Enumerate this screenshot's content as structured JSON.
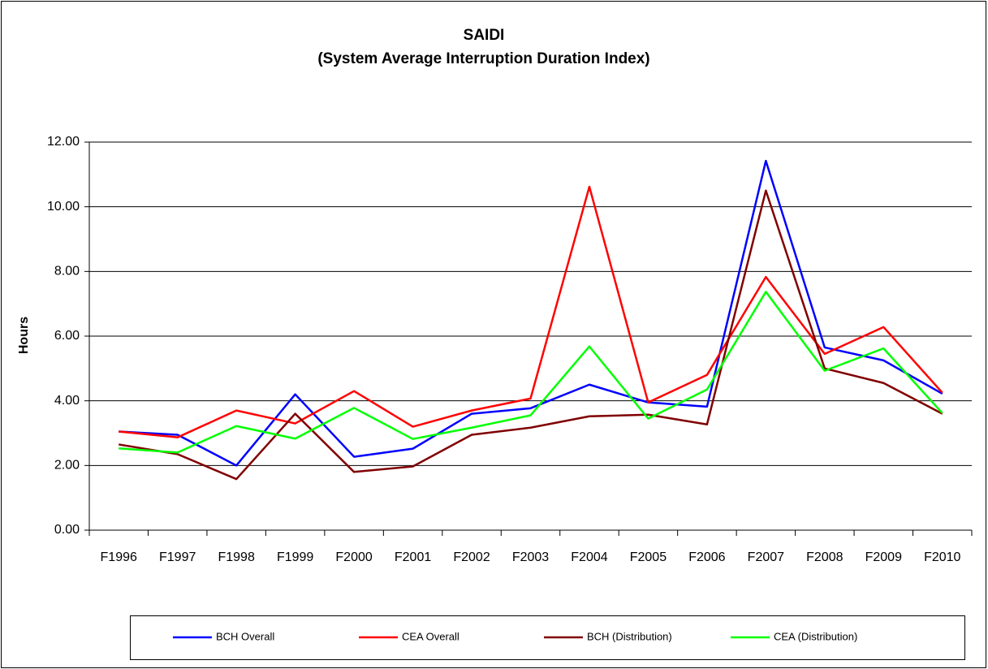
{
  "chart_data": {
    "type": "line",
    "title": "SAIDI",
    "subtitle": "(System Average Interruption Duration Index)",
    "y_label": "Hours",
    "categories": [
      "F1996",
      "F1997",
      "F1998",
      "F1999",
      "F2000",
      "F2001",
      "F2002",
      "F2003",
      "F2004",
      "F2005",
      "F2006",
      "F2007",
      "F2008",
      "F2009",
      "F2010"
    ],
    "series": [
      {
        "name": "BCH Overall",
        "color": "#0000ff",
        "values": [
          3.05,
          2.95,
          2.0,
          4.2,
          2.27,
          2.52,
          3.6,
          3.77,
          4.5,
          3.95,
          3.82,
          11.42,
          5.65,
          5.25,
          4.22
        ]
      },
      {
        "name": "CEA Overall",
        "color": "#ff0000",
        "values": [
          3.05,
          2.87,
          3.7,
          3.3,
          4.3,
          3.2,
          3.7,
          4.07,
          10.62,
          3.95,
          4.8,
          7.83,
          5.45,
          6.28,
          4.25
        ]
      },
      {
        "name": "BCH (Distribution)",
        "color": "#800000",
        "values": [
          2.65,
          2.35,
          1.58,
          3.6,
          1.8,
          1.97,
          2.95,
          3.17,
          3.52,
          3.57,
          3.27,
          10.5,
          5.0,
          4.55,
          3.6
        ]
      },
      {
        "name": "CEA (Distribution)",
        "color": "#00ff00",
        "values": [
          2.53,
          2.4,
          3.22,
          2.83,
          3.78,
          2.82,
          3.17,
          3.55,
          5.68,
          3.45,
          4.35,
          7.37,
          4.93,
          5.62,
          3.62
        ]
      }
    ],
    "ylim": [
      0,
      12
    ],
    "yticks": [
      {
        "value": 0,
        "label": "0.00"
      },
      {
        "value": 2,
        "label": "2.00"
      },
      {
        "value": 4,
        "label": "4.00"
      },
      {
        "value": 6,
        "label": "6.00"
      },
      {
        "value": 8,
        "label": "8.00"
      },
      {
        "value": 10,
        "label": "10.00"
      },
      {
        "value": 12,
        "label": "12.00"
      }
    ],
    "grid": true,
    "legend": "bottom"
  }
}
